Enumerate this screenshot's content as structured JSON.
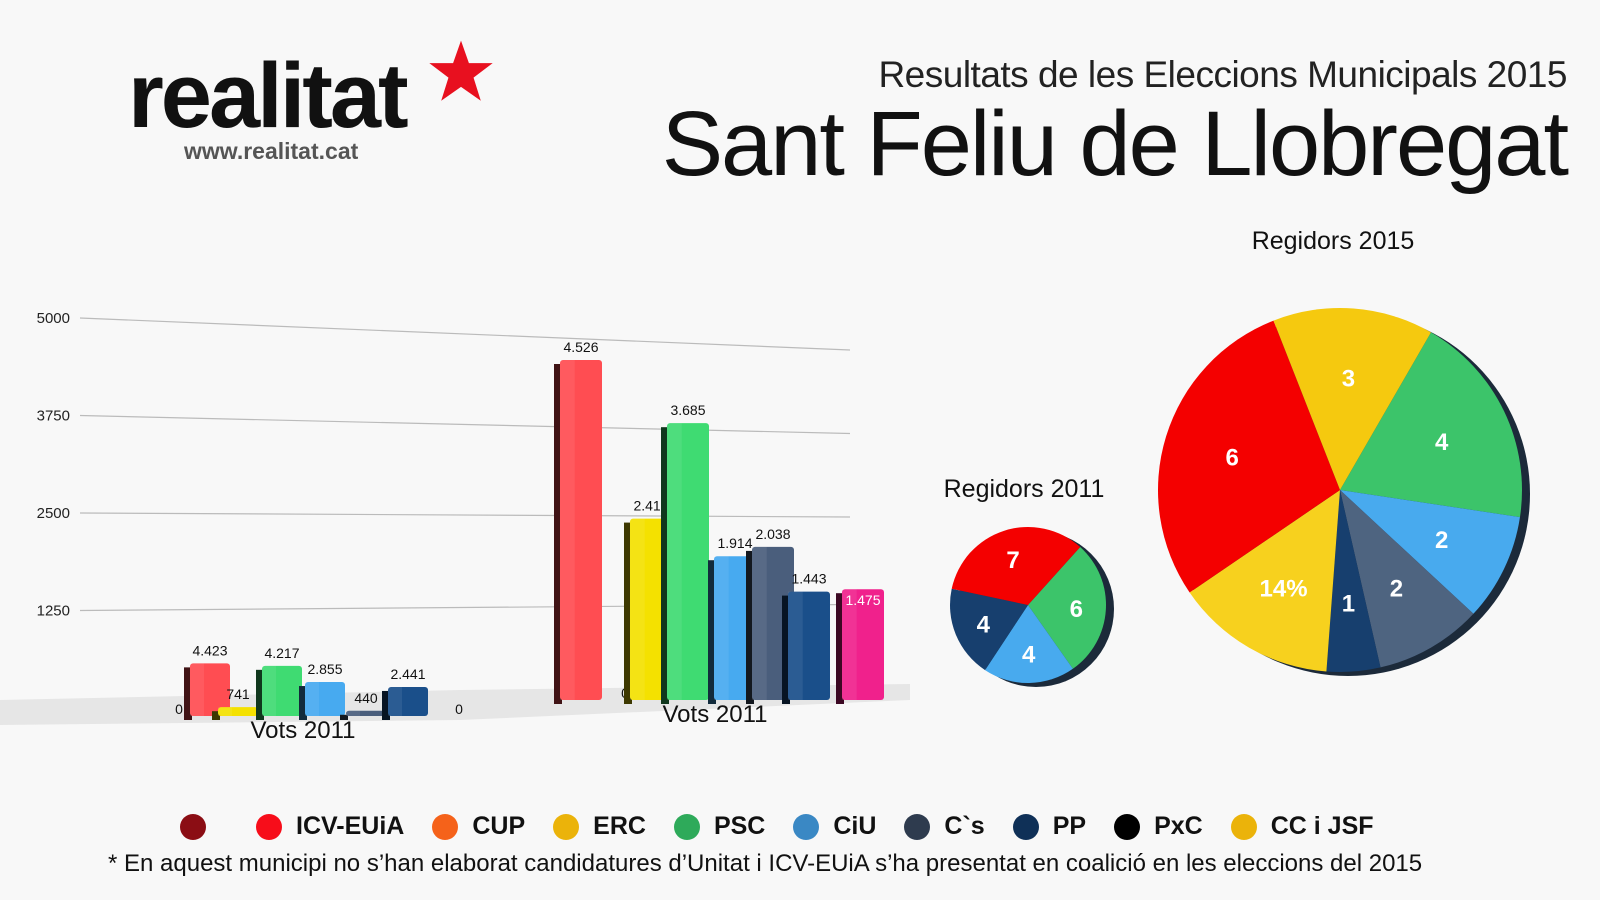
{
  "header": {
    "logo_text": "realitat",
    "logo_url": "www.realitat.cat",
    "subtitle": "Resultats de les Eleccions Municipals 2015",
    "title": "Sant Feliu de Llobregat"
  },
  "colors": {
    "unitat": "#7a0c12",
    "icv": "#ff4d52",
    "cup": "#f26522",
    "erc": "#f4e100",
    "psc": "#3fdb72",
    "ciu": "#47aaf0",
    "cs": "#4a5e7c",
    "pp": "#1a4f8a",
    "pxc": "#000000",
    "ccjsf": "#e6b800",
    "pink": "#f0218c"
  },
  "chart_data": [
    {
      "type": "bar",
      "title": "Vots 2011",
      "xlabel": "Vots 2011",
      "ylabel": "",
      "ylim": [
        0,
        5000
      ],
      "yticks": [
        "0",
        "1250",
        "2500",
        "3750",
        "5000"
      ],
      "grid": true,
      "categories": [
        "Unitat",
        "ICV-EUiA",
        "CUP",
        "ERC",
        "PSC",
        "CiU",
        "C`s",
        "PP",
        "PxC"
      ],
      "values": [
        0,
        4423,
        0,
        741,
        4217,
        2855,
        440,
        2441,
        0
      ],
      "labels": [
        "",
        "4.423",
        "0",
        "741",
        "4.217",
        "2.855",
        "440",
        "2.441",
        "0"
      ]
    },
    {
      "type": "bar",
      "title": "Vots 2011",
      "xlabel": "Vots 2011",
      "ylim": [
        0,
        5000
      ],
      "grid": true,
      "categories": [
        "Unitat",
        "ICV-EUiA",
        "CUP",
        "ERC",
        "PSC",
        "CiU",
        "C`s",
        "PP",
        "PxC",
        "CC i JSF"
      ],
      "values": [
        0,
        4526,
        0,
        2415,
        3685,
        1914,
        2038,
        1443,
        0,
        1475
      ],
      "labels": [
        "0",
        "4.526",
        "0",
        "2.415",
        "3.685",
        "1.914",
        "2.038",
        "1.443",
        "0",
        "1.475"
      ]
    },
    {
      "type": "pie",
      "title": "Regidors 2011",
      "slices": [
        {
          "party": "PSC",
          "value": 6,
          "label": "6"
        },
        {
          "party": "CiU",
          "value": 4,
          "label": "4"
        },
        {
          "party": "PP",
          "value": 4,
          "label": "4"
        },
        {
          "party": "ICV-EUiA",
          "value": 7,
          "label": "7"
        }
      ]
    },
    {
      "type": "pie",
      "title": "Regidors 2015",
      "slices": [
        {
          "party": "PSC",
          "value": 4,
          "label": "4"
        },
        {
          "party": "CiU",
          "value": 2,
          "label": "2"
        },
        {
          "party": "C`s",
          "value": 2,
          "label": "2"
        },
        {
          "party": "PP",
          "value": 1,
          "label": "1"
        },
        {
          "party": "CC i JSF",
          "value": 3,
          "label": "14%"
        },
        {
          "party": "ICV-EUiA",
          "value": 6,
          "label": "6"
        },
        {
          "party": "ERC",
          "value": 3,
          "label": "3"
        }
      ]
    }
  ],
  "legend": [
    {
      "label": "",
      "color": "#8b0d14"
    },
    {
      "label": "ICV-EUiA",
      "color": "#f70d1a"
    },
    {
      "label": "CUP",
      "color": "#f5621a"
    },
    {
      "label": "ERC",
      "color": "#ebb30a"
    },
    {
      "label": "PSC",
      "color": "#2eaa5a"
    },
    {
      "label": "CiU",
      "color": "#3a88c4"
    },
    {
      "label": "C`s",
      "color": "#2e3b4e"
    },
    {
      "label": "PP",
      "color": "#0f3057"
    },
    {
      "label": "PxC",
      "color": "#000000"
    },
    {
      "label": "CC i JSF",
      "color": "#ebb30a"
    }
  ],
  "footnote": "* En aquest municipi no s’han elaborat candidatures d’Unitat i ICV-EUiA s’ha presentat en coalició en les eleccions del 2015"
}
